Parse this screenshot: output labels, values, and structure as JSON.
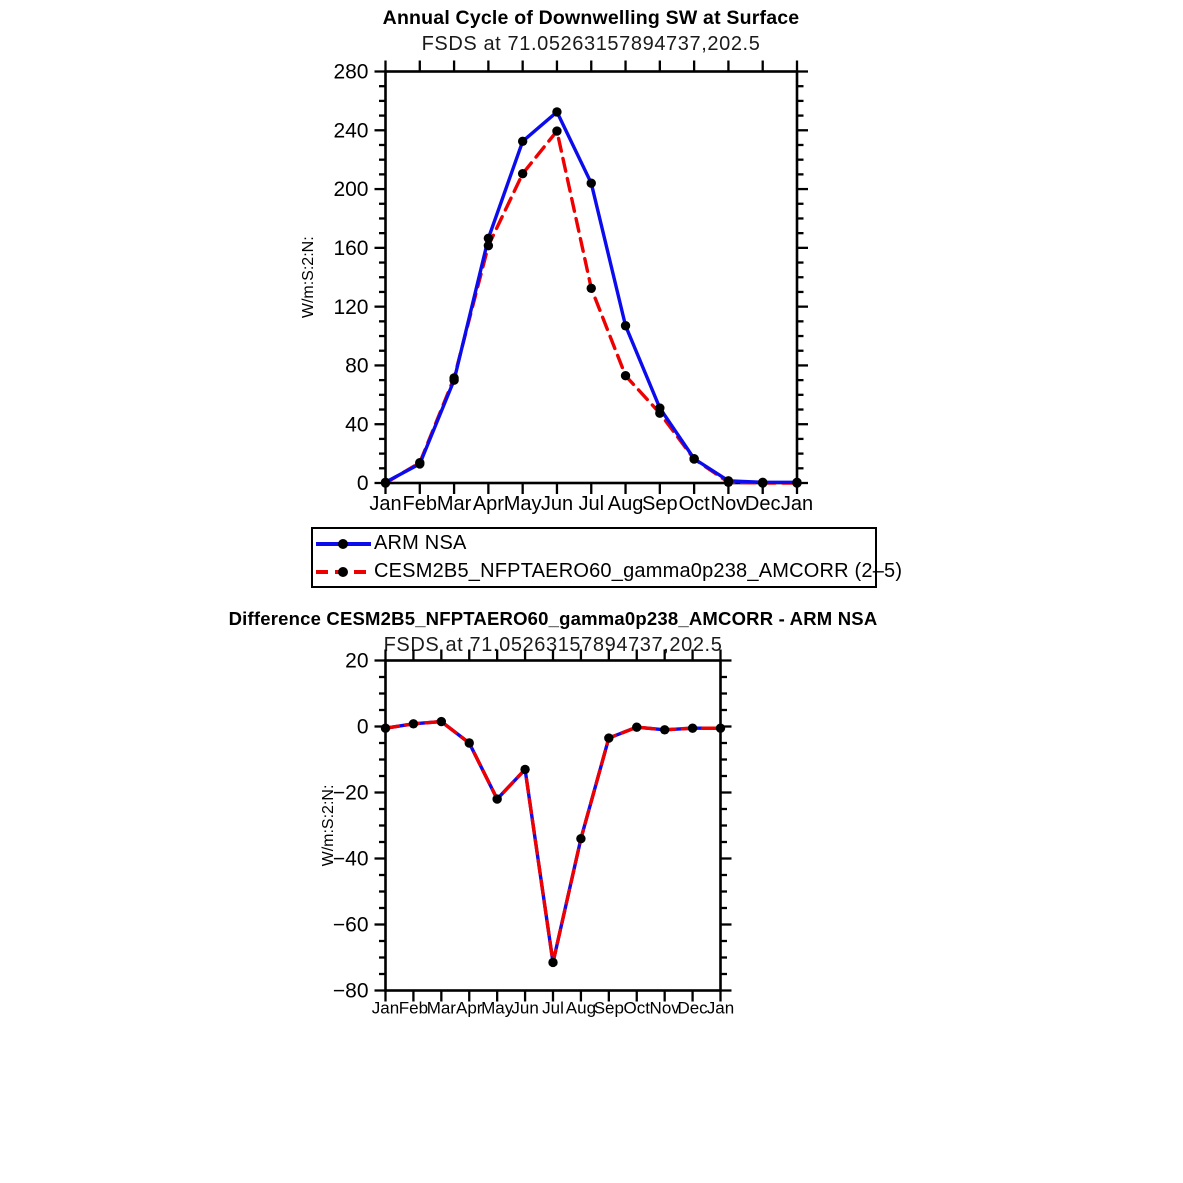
{
  "figure": {
    "background": "#ffffff",
    "axis_color": "#000000",
    "marker_color": "#000000"
  },
  "top_chart": {
    "title": "Annual Cycle of Downwelling SW at Surface",
    "subtitle": "FSDS at 71.05263157894737,202.5",
    "ylabel": "W/m:S:2:N:"
  },
  "bottom_chart": {
    "title": "Difference CESM2B5_NFPTAERO60_gamma0p238_AMCORR - ARM NSA",
    "subtitle": "FSDS at 71.05263157894737,202.5",
    "ylabel": "W/m:S:2:N:"
  },
  "legend": {
    "entries": [
      {
        "label": "ARM NSA",
        "color": "#0b0bee",
        "style": "solid"
      },
      {
        "label": "CESM2B5_NFPTAERO60_gamma0p238_AMCORR (2–5)",
        "color": "#ee0000",
        "style": "dashed"
      }
    ]
  },
  "chart_data": [
    {
      "type": "line",
      "title": "Annual Cycle of Downwelling SW at Surface",
      "subtitle": "FSDS at 71.05263157894737,202.5",
      "xlabel": "",
      "ylabel": "W/m:S:2:N:",
      "categories": [
        "Jan",
        "Feb",
        "Mar",
        "Apr",
        "May",
        "Jun",
        "Jul",
        "Aug",
        "Sep",
        "Oct",
        "Nov",
        "Dec",
        "Jan"
      ],
      "ylim": [
        0,
        280
      ],
      "ytick_major": 40,
      "ytick_minor": 10,
      "grid": false,
      "legend_position": "below-left",
      "series": [
        {
          "name": "ARM NSA",
          "color": "#0b0bee",
          "style": "solid",
          "marker": "circle",
          "values": [
            0.5,
            13,
            70,
            166.5,
            232.5,
            252.5,
            204,
            107,
            51,
            16.5,
            1.5,
            0.5,
            0.5
          ]
        },
        {
          "name": "CESM2B5_NFPTAERO60_gamma0p238_AMCORR (2–5)",
          "color": "#ee0000",
          "style": "dashed",
          "marker": "circle",
          "values": [
            0,
            13.8,
            71.5,
            161.5,
            210.5,
            239.5,
            132.5,
            73,
            47.5,
            16.3,
            0.5,
            0,
            0
          ]
        }
      ]
    },
    {
      "type": "line",
      "title": "Difference CESM2B5_NFPTAERO60_gamma0p238_AMCORR - ARM NSA",
      "subtitle": "FSDS at 71.05263157894737,202.5",
      "xlabel": "",
      "ylabel": "W/m:S:2:N:",
      "categories": [
        "Jan",
        "Feb",
        "Mar",
        "Apr",
        "May",
        "Jun",
        "Jul",
        "Aug",
        "Sep",
        "Oct",
        "Nov",
        "Dec",
        "Jan"
      ],
      "ylim": [
        -80,
        20
      ],
      "ytick_major": 20,
      "ytick_minor": 5,
      "grid": false,
      "series": [
        {
          "name": "CESM2B5_NFPTAERO60_gamma0p238_AMCORR - ARM NSA",
          "color": "#0b0bee",
          "style": "solid",
          "marker": "circle",
          "underlay": {
            "color": "#ee0000",
            "style": "dashed"
          },
          "values": [
            -0.5,
            0.8,
            1.5,
            -5,
            -22,
            -13,
            -71.5,
            -34,
            -3.5,
            -0.2,
            -1.0,
            -0.5,
            -0.5
          ]
        }
      ]
    }
  ]
}
